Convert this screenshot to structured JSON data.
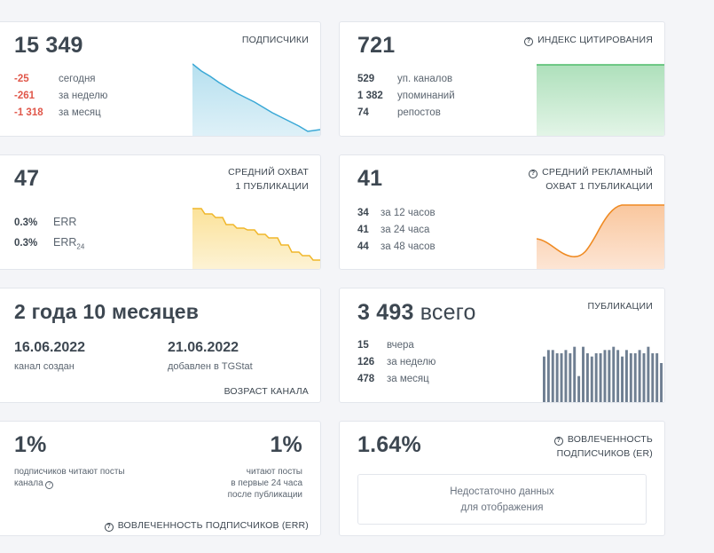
{
  "subscribers": {
    "value": "15 349",
    "caption": "ПОДПИСЧИКИ",
    "rows": [
      {
        "value": "-25",
        "label": "сегодня"
      },
      {
        "value": "-261",
        "label": "за неделю"
      },
      {
        "value": "-1 318",
        "label": "за месяц"
      }
    ],
    "chart_data": {
      "type": "area",
      "trend": "decreasing",
      "color": "#4fb3d9"
    }
  },
  "citation": {
    "value": "721",
    "caption": "ИНДЕКС ЦИТИРОВАНИЯ",
    "rows": [
      {
        "value": "529",
        "label": "уп. каналов"
      },
      {
        "value": "1 382",
        "label": "упоминаний"
      },
      {
        "value": "74",
        "label": "репостов"
      }
    ],
    "chart_data": {
      "type": "area",
      "trend": "flat",
      "color": "#5ec47a"
    }
  },
  "reach": {
    "value": "47",
    "caption_line1": "СРЕДНИЙ ОХВАТ",
    "caption_line2": "1 ПУБЛИКАЦИИ",
    "rows": [
      {
        "value": "0.3%",
        "label": "ERR"
      },
      {
        "value": "0.3%",
        "label": "ERR",
        "sub": "24"
      }
    ],
    "chart_data": {
      "type": "area",
      "trend": "stepwise-decreasing",
      "color": "#f2c23c"
    }
  },
  "ad_reach": {
    "value": "41",
    "caption_line1": "СРЕДНИЙ РЕКЛАМНЫЙ",
    "caption_line2": "ОХВАТ 1 ПУБЛИКАЦИИ",
    "rows": [
      {
        "value": "34",
        "label": "за 12 часов"
      },
      {
        "value": "41",
        "label": "за 24 часа"
      },
      {
        "value": "44",
        "label": "за 48 часов"
      }
    ],
    "chart_data": {
      "type": "area",
      "trend": "dip-then-rise",
      "color": "#f28a2e"
    }
  },
  "age": {
    "value": "2 года 10 месяцев",
    "created_date": "16.06.2022",
    "created_label": "канал создан",
    "added_date": "21.06.2022",
    "added_label": "добавлен в TGStat",
    "caption": "ВОЗРАСТ КАНАЛА"
  },
  "publications": {
    "value": "3 493",
    "unit": "всего",
    "caption": "ПУБЛИКАЦИИ",
    "rows": [
      {
        "value": "15",
        "label": "вчера"
      },
      {
        "value": "126",
        "label": "за неделю"
      },
      {
        "value": "478",
        "label": "за месяц"
      }
    ],
    "chart_data": {
      "type": "bar",
      "color": "#6f7f92",
      "values": [
        14,
        16,
        16,
        15,
        15,
        16,
        15,
        17,
        8,
        17,
        15,
        14,
        15,
        15,
        16,
        16,
        17,
        16,
        14,
        16,
        15,
        15,
        16,
        15,
        17,
        15,
        15,
        12
      ]
    }
  },
  "err": {
    "left_value": "1%",
    "left_text_1": "подписчиков читают посты",
    "left_text_2": "канала",
    "right_value": "1%",
    "right_text_1": "читают посты",
    "right_text_2": "в первые 24 часа",
    "right_text_3": "после публикации",
    "caption": "ВОВЛЕЧЕННОСТЬ ПОДПИСЧИКОВ (ERR)"
  },
  "er": {
    "value": "1.64%",
    "caption_line1": "ВОВЛЕЧЕННОСТЬ",
    "caption_line2": "ПОДПИСЧИКОВ (ER)",
    "nodata_1": "Недостаточно данных",
    "nodata_2": "для отображения"
  }
}
